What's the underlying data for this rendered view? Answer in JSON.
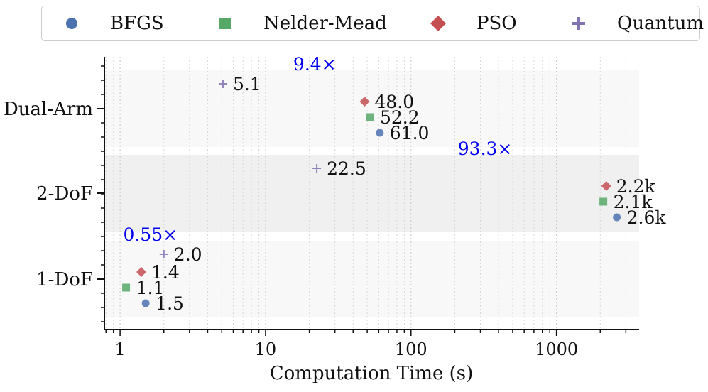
{
  "chart_data": {
    "type": "scatter",
    "title": "",
    "xlabel": "Computation Time (s)",
    "ylabel": "",
    "xscale": "log",
    "xlim": [
      0.78,
      3700
    ],
    "x_ticks": [
      1,
      10,
      100,
      1000
    ],
    "x_tick_labels": [
      "1",
      "10",
      "100",
      "1000"
    ],
    "categories": [
      "1-DoF",
      "2-DoF",
      "Dual-Arm"
    ],
    "grid": "vertical dotted (minor log grid)",
    "legend_position": "top",
    "series": [
      {
        "name": "BFGS",
        "marker": "circle",
        "color": "#4c72b0",
        "values": [
          1.5,
          2600,
          61.0
        ],
        "labels": [
          "1.5",
          "2.6k",
          "61.0"
        ]
      },
      {
        "name": "Nelder-Mead",
        "marker": "square",
        "color": "#55a868",
        "values": [
          1.1,
          2100,
          52.2
        ],
        "labels": [
          "1.1",
          "2.1k",
          "52.2"
        ]
      },
      {
        "name": "PSO",
        "marker": "diamond",
        "color": "#c44e52",
        "values": [
          1.4,
          2200,
          48.0
        ],
        "labels": [
          "1.4",
          "2.2k",
          "48.0"
        ]
      },
      {
        "name": "Quantum",
        "marker": "plus",
        "color": "#8172b2",
        "values": [
          2.0,
          22.5,
          5.1
        ],
        "labels": [
          "2.0",
          "22.5",
          "5.1"
        ]
      }
    ],
    "annotations": [
      {
        "category": "1-DoF",
        "text": "0.55×",
        "color": "#0000ee",
        "x": 1.05
      },
      {
        "category": "2-DoF",
        "text": "93.3×",
        "color": "#0000ee",
        "x": 210
      },
      {
        "category": "Dual-Arm",
        "text": "9.4×",
        "color": "#0000ee",
        "x": 15.5
      }
    ]
  }
}
